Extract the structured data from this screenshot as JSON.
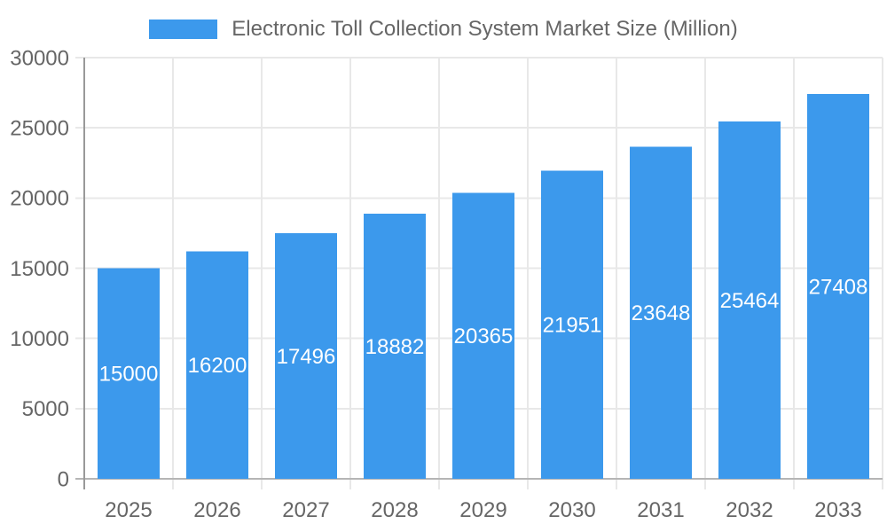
{
  "chart_data": {
    "type": "bar",
    "title": "Electronic Toll Collection System Market Size (Million)",
    "categories": [
      "2025",
      "2026",
      "2027",
      "2028",
      "2029",
      "2030",
      "2031",
      "2032",
      "2033"
    ],
    "values": [
      15000,
      16200,
      17496,
      18882,
      20365,
      21951,
      23648,
      25464,
      27408
    ],
    "xlabel": "",
    "ylabel": "",
    "ylim": [
      0,
      30000
    ],
    "yticks": [
      0,
      5000,
      10000,
      15000,
      20000,
      25000,
      30000
    ],
    "grid": true,
    "legend_position": "top",
    "value_label_position": "inside-center",
    "colors": {
      "bar": "#3C99EC",
      "value_label": "#FFFFFF",
      "axis_text": "#666666",
      "legend_text": "#666666",
      "gridline": "#E8E8E8",
      "axis_line": "#999999",
      "zero_line": "#B5B5B5",
      "background": "#FFFFFF"
    }
  }
}
